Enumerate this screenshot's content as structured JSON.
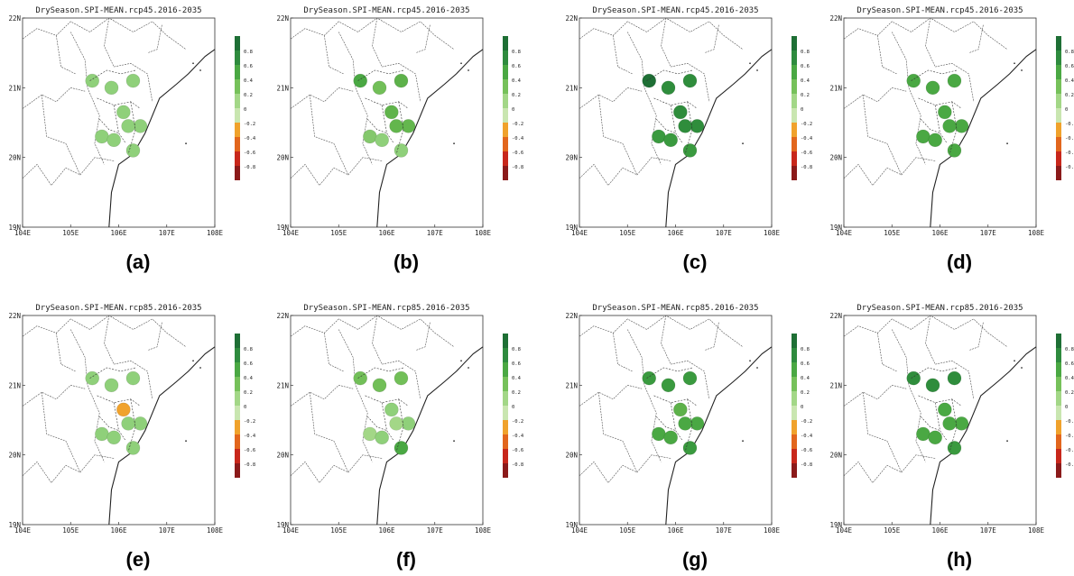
{
  "lat_ticks": [
    "22N",
    "21N",
    "20N",
    "19N"
  ],
  "lon_ticks": [
    "104E",
    "105E",
    "106E",
    "107E",
    "108E"
  ],
  "colorbar_ticks": [
    "0.8",
    "0.6",
    "0.4",
    "0.2",
    "0",
    "-0.2",
    "-0.4",
    "-0.6",
    "-0.8"
  ],
  "colorbar_colors": [
    "#1e6f35",
    "#2e8b3e",
    "#4aa843",
    "#76c15a",
    "#a3d787",
    "#c9e6b0",
    "#f0a22c",
    "#e2661d",
    "#c8271b",
    "#8b1a1a"
  ],
  "panels": [
    {
      "id": "a",
      "title": "DrySeason.SPI-MEAN.rcp45.2016-2035",
      "caption": "(a)",
      "station_colors": [
        "#8fd07a",
        "#8fd07a",
        "#8fd07a",
        "#8fd07a",
        "#8fd07a",
        "#8fd07a",
        "#8fd07a",
        "#8fd07a",
        "#8fd07a"
      ]
    },
    {
      "id": "b",
      "title": "DrySeason.SPI-MEAN.rcp45.2016-2035",
      "caption": "(b)",
      "station_colors": [
        "#4aa843",
        "#72bf58",
        "#5db14a",
        "#60b44b",
        "#64b74e",
        "#63b64d",
        "#84c86c",
        "#8fd07a",
        "#8fd07a"
      ]
    },
    {
      "id": "c",
      "title": "DrySeason.SPI-MEAN.rcp45.2016-2035",
      "caption": "(c)",
      "station_colors": [
        "#1e6f35",
        "#2f8d3c",
        "#2f8d3c",
        "#2f8d3c",
        "#2f8d3c",
        "#2f8d3c",
        "#3a9a3f",
        "#3a9a3f",
        "#3a9a3f"
      ]
    },
    {
      "id": "d",
      "title": "DrySeason.SPI-MEAN.rcp45.2016-2035",
      "caption": "(d)",
      "station_colors": [
        "#4aa843",
        "#4aa843",
        "#4aa843",
        "#4aa843",
        "#4aa843",
        "#4aa843",
        "#4aa843",
        "#4aa843",
        "#4aa843"
      ]
    },
    {
      "id": "e",
      "title": "DrySeason.SPI-MEAN.rcp85.2016-2035",
      "caption": "(e)",
      "station_colors": [
        "#8fd07a",
        "#8fd07a",
        "#8fd07a",
        "#f0a22c",
        "#8fd07a",
        "#8fd07a",
        "#8fd07a",
        "#8fd07a",
        "#8fd07a"
      ]
    },
    {
      "id": "f",
      "title": "DrySeason.SPI-MEAN.rcp85.2016-2035",
      "caption": "(f)",
      "station_colors": [
        "#72bf58",
        "#72bf58",
        "#72bf58",
        "#8fd07a",
        "#8fd07a",
        "#a3d787",
        "#a3d787",
        "#8fd07a",
        "#4aa843"
      ]
    },
    {
      "id": "g",
      "title": "DrySeason.SPI-MEAN.rcp85.2016-2035",
      "caption": "(g)",
      "station_colors": [
        "#3a9a3f",
        "#3a9a3f",
        "#3a9a3f",
        "#5db14a",
        "#4aa843",
        "#4aa843",
        "#4aa843",
        "#4aa843",
        "#3a9a3f"
      ]
    },
    {
      "id": "h",
      "title": "DrySeason.SPI-MEAN.rcp85.2016-2035",
      "caption": "(h)",
      "station_colors": [
        "#2f8d3c",
        "#2f8d3c",
        "#2f8d3c",
        "#4aa843",
        "#4aa843",
        "#4aa843",
        "#4aa843",
        "#4aa843",
        "#3a9a3f"
      ]
    }
  ]
}
